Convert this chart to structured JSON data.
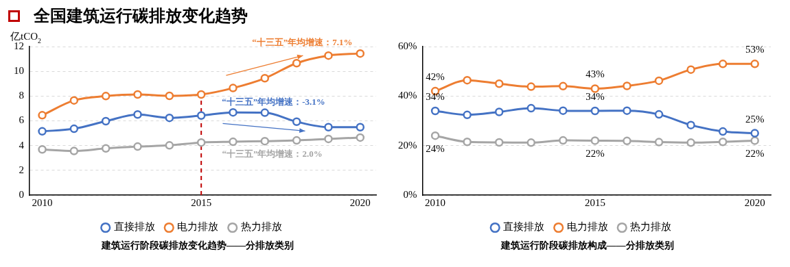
{
  "chart_data": [
    {
      "type": "line",
      "title": "全国建筑运行碳排放变化趋势",
      "ylabel": "亿tCO$_{2}$",
      "x": [
        2010,
        2011,
        2012,
        2013,
        2014,
        2015,
        2016,
        2017,
        2018,
        2019,
        2020
      ],
      "xlim": [
        2009.6,
        2020.5
      ],
      "xticks": [
        2010,
        2015,
        2020
      ],
      "ylim": [
        0,
        12
      ],
      "yticks": [
        0,
        2,
        4,
        6,
        8,
        10,
        12
      ],
      "grid": "y",
      "legend": "bottom",
      "marker": "circle",
      "series": [
        {
          "name": "直接排放",
          "color": "#4472c4",
          "values": [
            5.15,
            5.36,
            5.97,
            6.51,
            6.24,
            6.43,
            6.68,
            6.66,
            5.93,
            5.49,
            5.49
          ]
        },
        {
          "name": "电力排放",
          "color": "#ed7d31",
          "values": [
            6.45,
            7.65,
            8.0,
            8.13,
            8.02,
            8.13,
            8.65,
            9.44,
            10.66,
            11.27,
            11.44
          ]
        },
        {
          "name": "热力排放",
          "color": "#a5a5a5",
          "values": [
            3.69,
            3.56,
            3.77,
            3.92,
            4.02,
            4.25,
            4.31,
            4.36,
            4.42,
            4.54,
            4.65
          ]
        }
      ],
      "ref_lines": [
        {
          "axis": "x",
          "value": 2015,
          "color": "#c00000",
          "line_style": "dashed"
        }
      ],
      "annotations": [
        "“十三五”年均增速：-3.1%",
        "“十三五”年均增速：7.1%",
        "“十三五”年均增速：2.0%",
        "建筑运行阶段碳排放变化趋势——分排放类别"
      ]
    },
    {
      "type": "line",
      "x": [
        2010,
        2011,
        2012,
        2013,
        2014,
        2015,
        2016,
        2017,
        2018,
        2019,
        2020
      ],
      "xlim": [
        2009.6,
        2020.5
      ],
      "xticks": [
        2010,
        2015,
        2020
      ],
      "ylim": [
        0,
        60
      ],
      "yticks": [
        {
          "value": 0,
          "label": "0%"
        },
        {
          "value": 20,
          "label": "20%"
        },
        {
          "value": 40,
          "label": "40%"
        },
        {
          "value": 60,
          "label": "60%"
        }
      ],
      "grid": "y",
      "legend": "bottom",
      "marker": "circle",
      "series": [
        {
          "name": "直接排放",
          "color": "#4472c4",
          "values": [
            34,
            32.4,
            33.6,
            35.1,
            34.1,
            34,
            34.1,
            32.6,
            28.3,
            25.7,
            25
          ],
          "value_labels": [
            "34%",
            null,
            null,
            null,
            null,
            "34%",
            null,
            null,
            null,
            null,
            "25%"
          ]
        },
        {
          "name": "电力排放",
          "color": "#ed7d31",
          "values": [
            42,
            46.4,
            45.0,
            43.8,
            44.0,
            43,
            44.1,
            46.2,
            50.7,
            53,
            53
          ],
          "value_labels": [
            "42%",
            null,
            null,
            null,
            null,
            "43%",
            null,
            null,
            null,
            null,
            "53%"
          ]
        },
        {
          "name": "热力排放",
          "color": "#a5a5a5",
          "values": [
            24,
            21.5,
            21.3,
            21.2,
            22.1,
            22,
            21.9,
            21.4,
            21.2,
            21.5,
            22
          ],
          "value_labels": [
            "24%",
            null,
            null,
            null,
            null,
            "22%",
            null,
            null,
            null,
            null,
            "22%"
          ]
        }
      ],
      "annotations": [
        "建筑运行阶段碳排放构成——分排放类别"
      ]
    }
  ]
}
